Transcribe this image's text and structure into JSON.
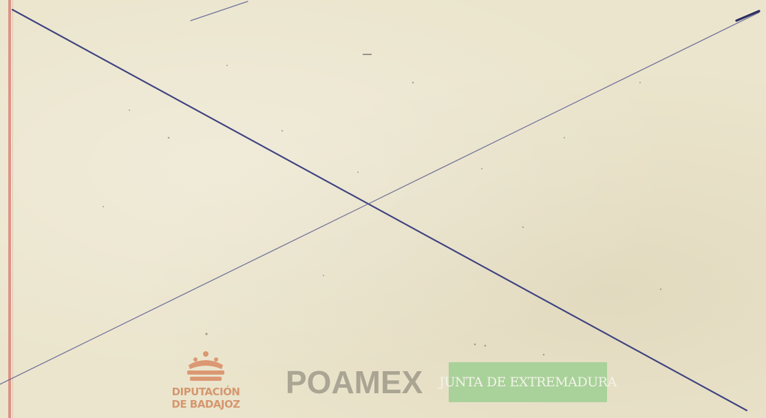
{
  "document": {
    "background_color": "#ebe5cd",
    "cross_color": "#3f4380"
  },
  "footer": {
    "seal": {
      "line1": "DIPUTACIÓN",
      "line2": "DE BADAJOZ",
      "color": "#d28a5f"
    },
    "brand": "POAMEX",
    "junta": {
      "text": "JUNTA DE EXTREMADURA",
      "color": "#9fcf93"
    }
  }
}
